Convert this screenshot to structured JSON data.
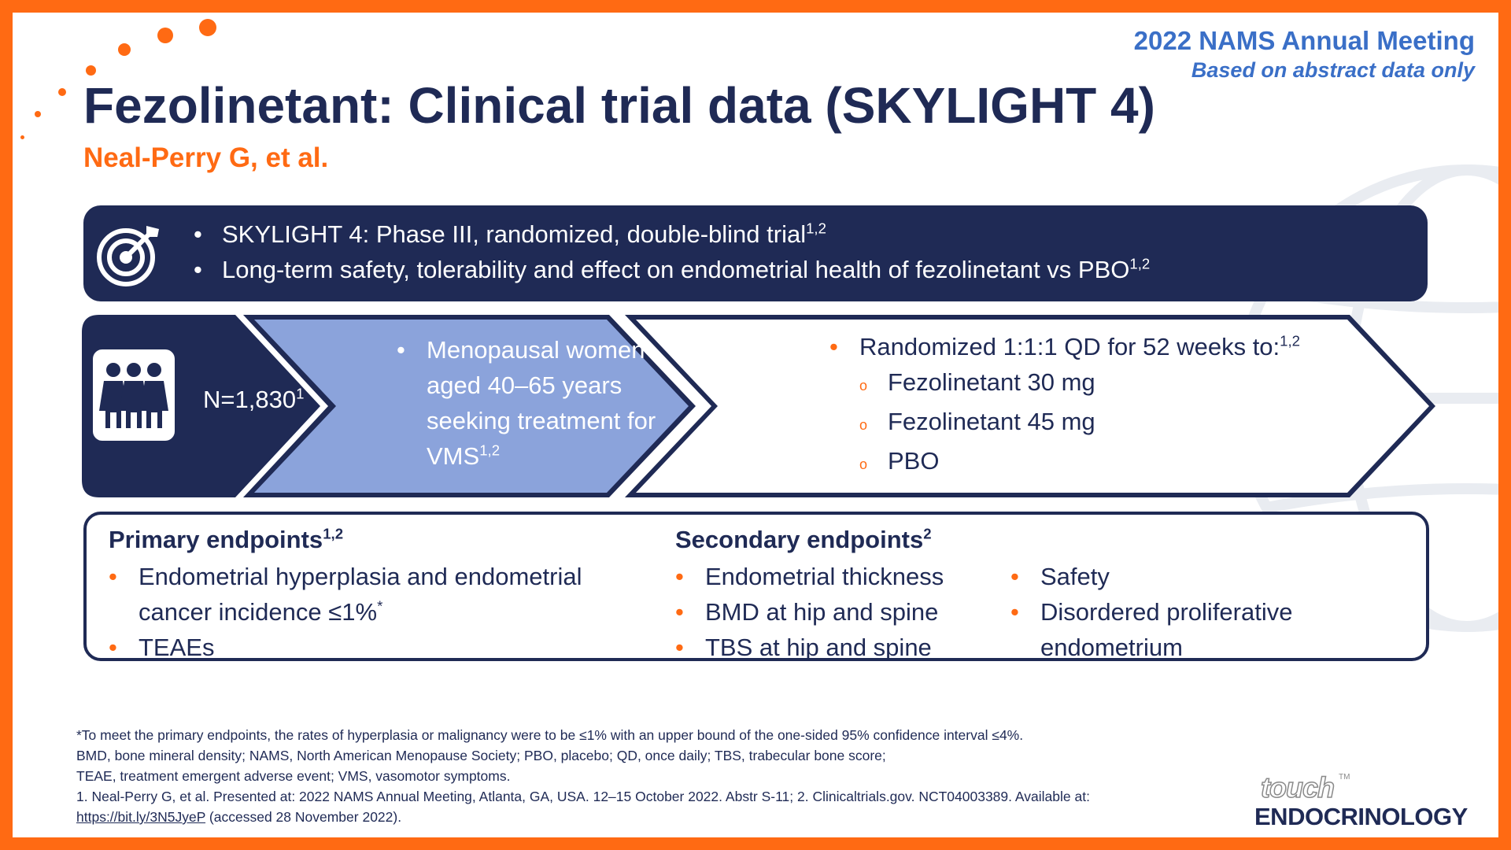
{
  "meeting": {
    "name": "2022 NAMS Annual Meeting",
    "note": "Based on abstract data only"
  },
  "title": "Fezolinetant: Clinical trial data (SKYLIGHT 4)",
  "authors": "Neal-Perry G, et al.",
  "objective": {
    "icon": "target-icon",
    "items": [
      {
        "text": "SKYLIGHT 4: Phase III, randomized, double-blind trial",
        "sup": "1,2"
      },
      {
        "text": "Long-term safety, tolerability and effect on endometrial health of fezolinetant vs PBO",
        "sup": "1,2"
      }
    ]
  },
  "population": {
    "icon": "women-group-icon",
    "n_text": "N=1,830",
    "n_sup": "1",
    "description": "Menopausal women aged 40–65 years seeking treatment for VMS",
    "description_sup": "1,2"
  },
  "randomization": {
    "text": "Randomized 1:1:1 QD for 52 weeks to:",
    "sup": "1,2",
    "arms": [
      "Fezolinetant 30 mg",
      "Fezolinetant 45 mg",
      "PBO"
    ]
  },
  "endpoints": {
    "primary": {
      "heading": "Primary endpoints",
      "heading_sup": "1,2",
      "item1": "Endometrial hyperplasia and endometrial cancer incidence ≤1%",
      "item1_sup": "*",
      "item2": "TEAEs"
    },
    "secondary": {
      "heading": "Secondary endpoints",
      "heading_sup": "2",
      "col1": [
        "Endometrial thickness",
        "BMD at hip and spine",
        "TBS at hip and spine"
      ],
      "col2": [
        "Safety",
        "Disordered proliferative endometrium"
      ]
    }
  },
  "footnotes": {
    "line1": "*To meet the primary endpoints, the rates of hyperplasia or malignancy were to be ≤1% with an upper bound of the one-sided 95% confidence interval ≤4%.",
    "line2": "BMD, bone mineral density; NAMS, North American Menopause Society; PBO, placebo; QD, once daily; TBS, trabecular bone score;",
    "line3": "TEAE, treatment emergent adverse event; VMS, vasomotor symptoms.",
    "line4": "1. Neal-Perry G, et al. Presented at: 2022 NAMS Annual Meeting, Atlanta, GA, USA. 12–15 October 2022. Abstr S-11; 2. Clinicaltrials.gov. NCT04003389. Available at:",
    "link": "https://bit.ly/3N5JyeP",
    "accessed": " (accessed 28 November 2022)."
  },
  "logo": {
    "word1": "touch",
    "tm": "TM",
    "word2": "ENDOCRINOLOGY"
  },
  "colors": {
    "navy": "#1f2a55",
    "orange": "#ff6a13",
    "periwinkle": "#8ba3db",
    "meeting_blue": "#3a6fc7"
  }
}
